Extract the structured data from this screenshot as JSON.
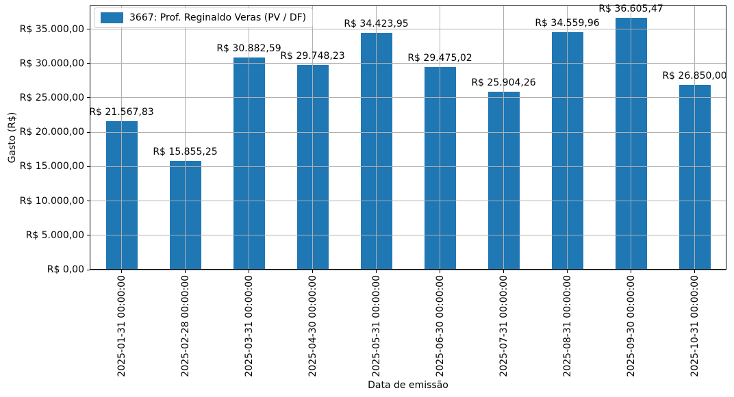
{
  "chart_data": {
    "type": "bar",
    "title": "",
    "xlabel": "Data de emissão",
    "ylabel": "Gasto (R$)",
    "legend": {
      "label": "3667: Prof. Reginaldo Veras (PV / DF)",
      "position": "upper left"
    },
    "categories": [
      "2025-01-31 00:00:00",
      "2025-02-28 00:00:00",
      "2025-03-31 00:00:00",
      "2025-04-30 00:00:00",
      "2025-05-31 00:00:00",
      "2025-06-30 00:00:00",
      "2025-07-31 00:00:00",
      "2025-08-31 00:00:00",
      "2025-09-30 00:00:00",
      "2025-10-31 00:00:00"
    ],
    "series": [
      {
        "name": "3667: Prof. Reginaldo Veras (PV / DF)",
        "values": [
          21567.83,
          15855.25,
          30882.59,
          29748.23,
          34423.95,
          29475.02,
          25904.26,
          34559.96,
          36605.47,
          26850.0
        ],
        "value_labels": [
          "R$ 21.567,83",
          "R$ 15.855,25",
          "R$ 30.882,59",
          "R$ 29.748,23",
          "R$ 34.423,95",
          "R$ 29.475,02",
          "R$ 25.904,26",
          "R$ 34.559,96",
          "R$ 36.605,47",
          "R$ 26.850,00"
        ]
      }
    ],
    "ylim": [
      0,
      38436
    ],
    "yticks": {
      "values": [
        0,
        5000,
        10000,
        15000,
        20000,
        25000,
        30000,
        35000
      ],
      "labels": [
        "R$ 0,00",
        "R$ 5.000,00",
        "R$ 10.000,00",
        "R$ 15.000,00",
        "R$ 20.000,00",
        "R$ 25.000,00",
        "R$ 30.000,00",
        "R$ 35.000,00"
      ]
    },
    "grid": true,
    "grid_over_bars": true,
    "colors": {
      "bar": "#1f77b4",
      "grid": "#b0b0b0",
      "spine": "#000000",
      "text": "#000000",
      "legend_border": "#cccccc"
    }
  }
}
